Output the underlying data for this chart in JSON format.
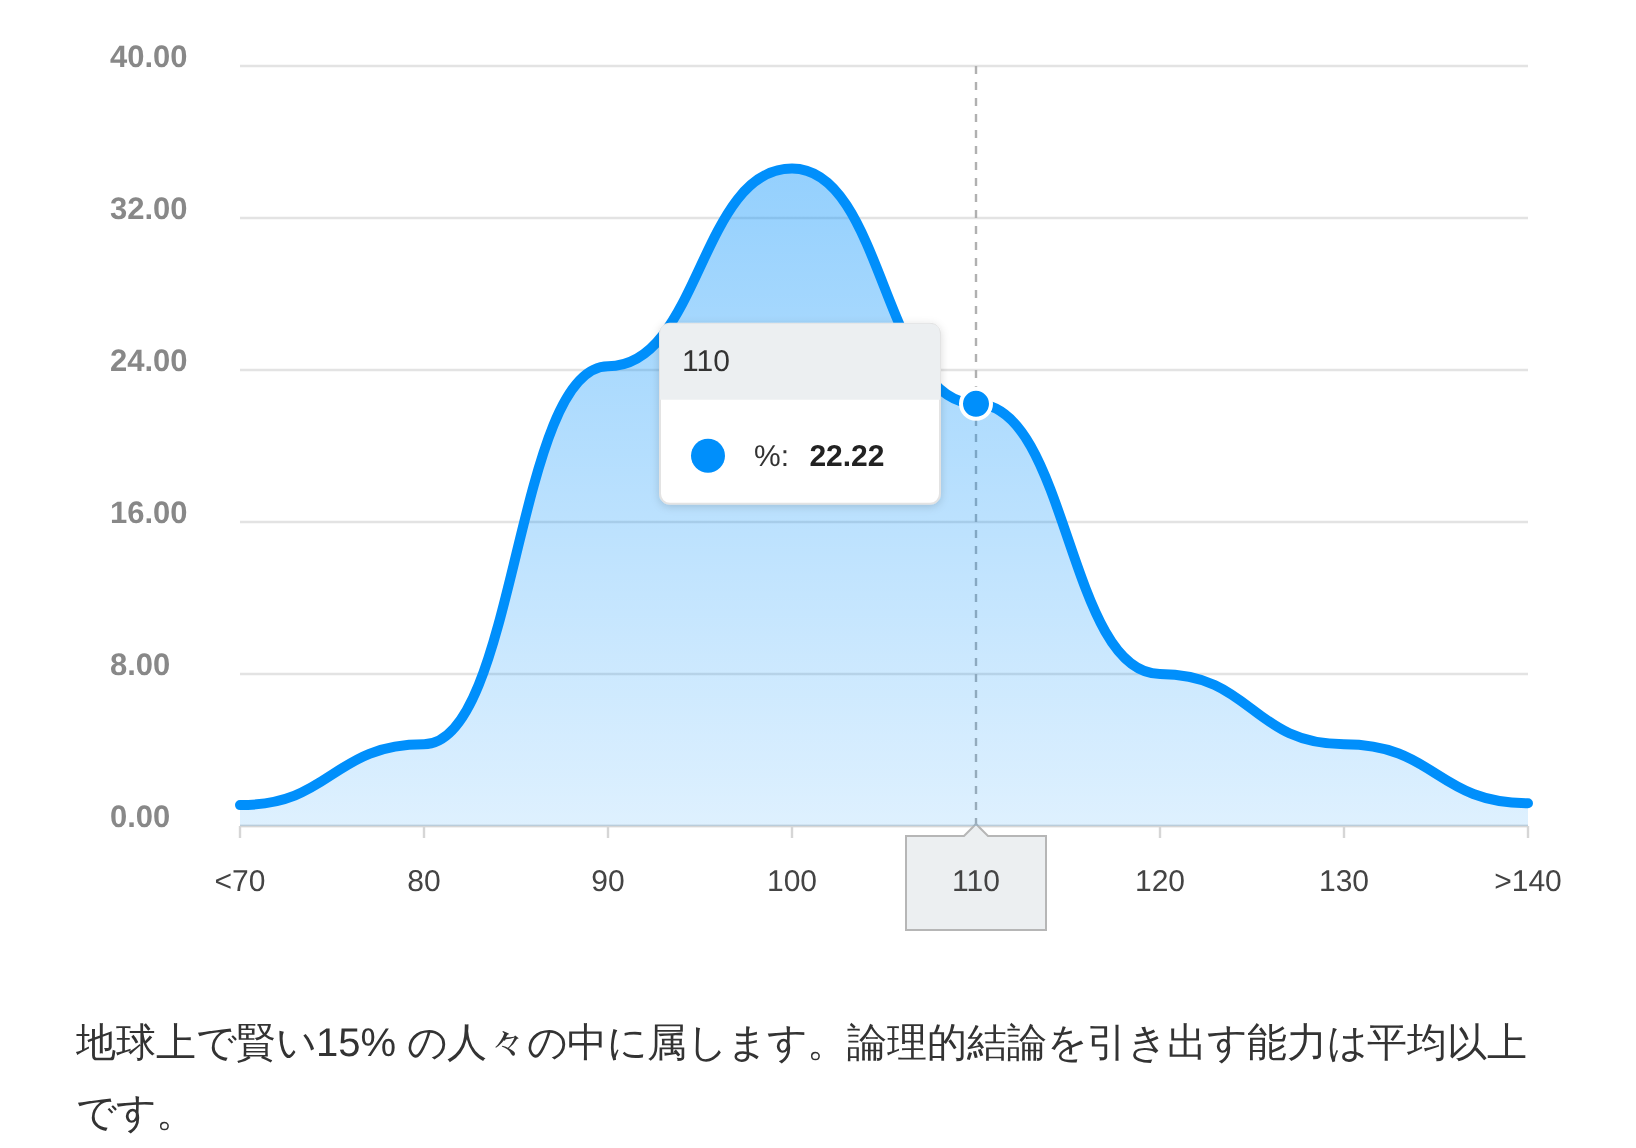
{
  "chart_data": {
    "type": "area",
    "categories": [
      "<70",
      "80",
      "90",
      "100",
      "110",
      "120",
      "130",
      ">140"
    ],
    "series": [
      {
        "color": "#008ffb",
        "values": [
          1.1,
          4.3,
          24.2,
          34.6,
          22.22,
          8.0,
          4.3,
          1.2
        ]
      }
    ],
    "ylim": [
      0,
      40
    ],
    "yticks": [
      {
        "value": 0,
        "label": "0.00"
      },
      {
        "value": 8,
        "label": "8.00"
      },
      {
        "value": 16,
        "label": "16.00"
      },
      {
        "value": 24,
        "label": "24.00"
      },
      {
        "value": 32,
        "label": "32.00"
      },
      {
        "value": 40,
        "label": "40.00"
      }
    ],
    "grid": "y",
    "line_style": "solid",
    "ref_lines": [
      {
        "axis": "x",
        "value": "110",
        "color": "#b0b0b0",
        "line_style": "dashed"
      }
    ],
    "annotations": [
      "110\n%: 22.22",
      "地球上で賢い15% の人々の中に属します。論理的結論を引き出す能力は平均以上です。"
    ]
  }
}
